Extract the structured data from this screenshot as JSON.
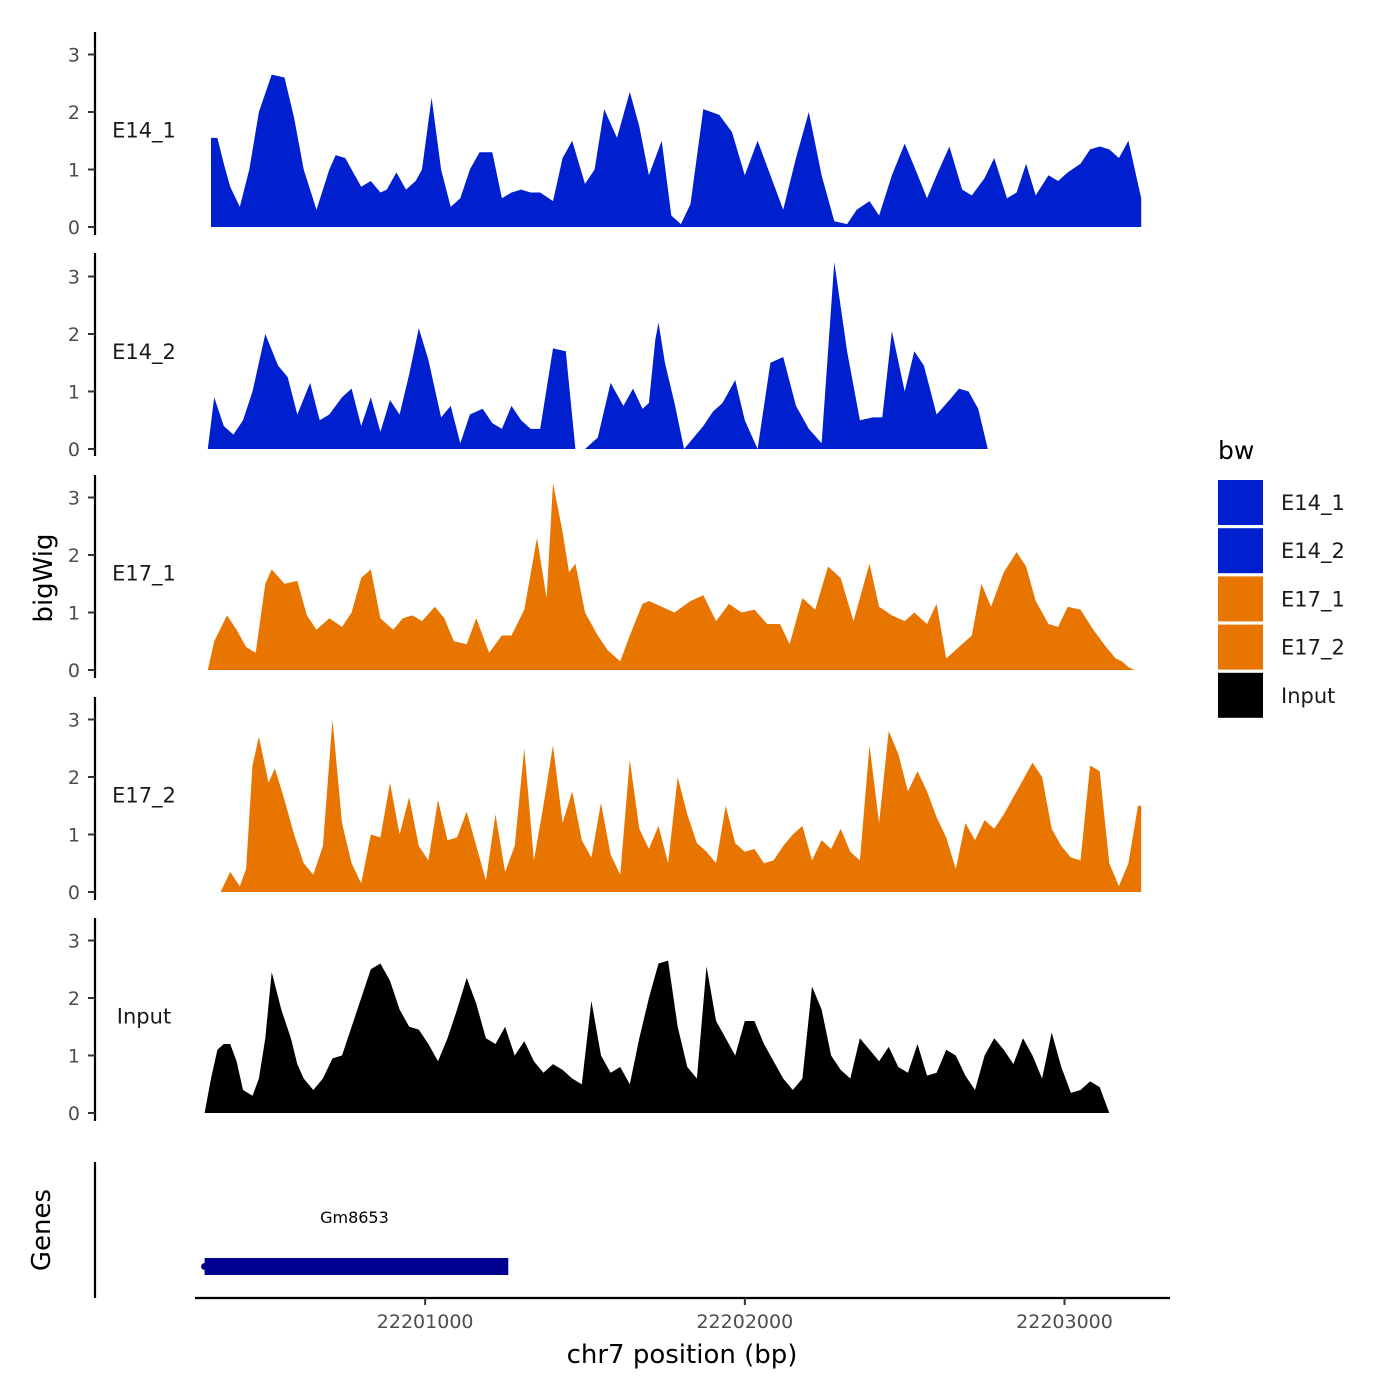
{
  "chart_data": {
    "type": "area",
    "ylabel": "bigWig",
    "xlabel": "chr7 position (bp)",
    "xlim": [
      22200280,
      22203330
    ],
    "ylim": [
      0,
      3.4
    ],
    "y_ticks": [
      0,
      1,
      2,
      3
    ],
    "y_tick_labels": [
      "0",
      "1",
      "2",
      "3"
    ],
    "x_ticks": [
      22201000,
      22202000,
      22203000
    ],
    "x_tick_labels": [
      "22201000",
      "22202000",
      "22203000"
    ],
    "colors": {
      "E14_1": "#0020d0",
      "E14_2": "#0020d0",
      "E17_1": "#e87500",
      "E17_2": "#e87500",
      "Input": "#000000",
      "gene": "#000090",
      "axis": "#000000"
    },
    "tracks": [
      {
        "name": "E14_1",
        "x": [
          22200330,
          22200350,
          22200370,
          22200390,
          22200420,
          22200450,
          22200480,
          22200520,
          22200560,
          22200590,
          22200620,
          22200660,
          22200700,
          22200720,
          22200750,
          22200780,
          22200800,
          22200830,
          22200860,
          22200880,
          22200910,
          22200940,
          22200970,
          22200990,
          22201020,
          22201050,
          22201080,
          22201110,
          22201140,
          22201170,
          22201210,
          22201240,
          22201270,
          22201300,
          22201330,
          22201360,
          22201400,
          22201430,
          22201460,
          22201500,
          22201530,
          22201560,
          22201600,
          22201640,
          22201670,
          22201700,
          22201740,
          22201770,
          22201800,
          22201830,
          22201870,
          22201920,
          22201960,
          22202000,
          22202040,
          22202080,
          22202120,
          22202160,
          22202200,
          22202240,
          22202280,
          22202320,
          22202350,
          22202390,
          22202420,
          22202460,
          22202500,
          22202530,
          22202570,
          22202600,
          22202640,
          22202680,
          22202710,
          22202750,
          22202780,
          22202820,
          22202850,
          22202880,
          22202910,
          22202950,
          22202980,
          22203010,
          22203050,
          22203080,
          22203110,
          22203140,
          22203170,
          22203200,
          22203220,
          22203240
        ],
        "values": [
          1.55,
          1.55,
          1.1,
          0.7,
          0.35,
          1.0,
          2.0,
          2.65,
          2.6,
          1.9,
          1.0,
          0.3,
          1.0,
          1.25,
          1.2,
          0.9,
          0.7,
          0.8,
          0.6,
          0.65,
          0.95,
          0.65,
          0.8,
          1.0,
          2.25,
          1.0,
          0.35,
          0.5,
          1.0,
          1.3,
          1.3,
          0.5,
          0.6,
          0.65,
          0.6,
          0.6,
          0.45,
          1.2,
          1.5,
          0.75,
          1.0,
          2.05,
          1.55,
          2.35,
          1.75,
          0.9,
          1.5,
          0.2,
          0.05,
          0.4,
          2.05,
          1.95,
          1.65,
          0.9,
          1.5,
          0.9,
          0.3,
          1.2,
          2.0,
          0.9,
          0.1,
          0.05,
          0.3,
          0.45,
          0.2,
          0.9,
          1.45,
          1.05,
          0.5,
          0.9,
          1.4,
          0.65,
          0.55,
          0.85,
          1.2,
          0.5,
          0.6,
          1.1,
          0.55,
          0.9,
          0.8,
          0.95,
          1.1,
          1.35,
          1.4,
          1.35,
          1.2,
          1.5,
          1.0,
          0.5
        ]
      },
      {
        "name": "E14_2",
        "x": [
          22200320,
          22200340,
          22200370,
          22200400,
          22200430,
          22200460,
          22200500,
          22200540,
          22200570,
          22200600,
          22200640,
          22200670,
          22200700,
          22200740,
          22200770,
          22200800,
          22200830,
          22200860,
          22200890,
          22200920,
          22200950,
          22200980,
          22201010,
          22201050,
          22201080,
          22201110,
          22201140,
          22201180,
          22201210,
          22201240,
          22201270,
          22201300,
          22201330,
          22201360,
          22201400,
          22201440,
          22201470,
          22201500,
          22201540,
          22201580,
          22201620,
          22201650,
          22201680,
          22201700,
          22201720,
          22201730,
          22201750,
          22201780,
          22201810,
          22201840,
          22201870,
          22201900,
          22201930,
          22201970,
          22202000,
          22202040,
          22202080,
          22202120,
          22202160,
          22202200,
          22202240,
          22202280,
          22202320,
          22202360,
          22202400,
          22202430,
          22202460,
          22202500,
          22202530,
          22202560,
          22202600,
          22202640,
          22202670,
          22202700,
          22202730,
          22202760,
          22202800,
          22202830,
          22202860,
          22202900,
          22202930,
          22202960,
          22202990,
          22203030,
          22203060,
          22203100,
          22203140,
          22203170,
          22203200,
          22203230,
          22203250
        ],
        "values": [
          0.0,
          0.9,
          0.4,
          0.25,
          0.5,
          1.0,
          2.0,
          1.45,
          1.25,
          0.6,
          1.15,
          0.5,
          0.6,
          0.9,
          1.05,
          0.4,
          0.9,
          0.3,
          0.85,
          0.6,
          1.3,
          2.1,
          1.55,
          0.55,
          0.75,
          0.1,
          0.6,
          0.7,
          0.45,
          0.35,
          0.75,
          0.5,
          0.35,
          0.35,
          1.75,
          1.7,
          0.0,
          0.0,
          0.2,
          1.15,
          0.75,
          1.05,
          0.7,
          0.8,
          1.9,
          2.2,
          1.5,
          0.8,
          0.0,
          0.2,
          0.4,
          0.65,
          0.8,
          1.2,
          0.5,
          0.0,
          1.5,
          1.6,
          0.75,
          0.35,
          0.1,
          3.25,
          1.7,
          0.5,
          0.55,
          0.55,
          2.05,
          1.0,
          1.7,
          1.45,
          0.6,
          0.85,
          1.05,
          1.0,
          0.7,
          0.0,
          0.0,
          0.0,
          0.0,
          0.0,
          0.0,
          0.0,
          0.0,
          0.0,
          0.0,
          0.0,
          0.0,
          0.0,
          0.0,
          0.0,
          0.0
        ],
        "note_values_order": "values follow x order"
      },
      {
        "name": "E17_1",
        "x": [
          22200320,
          22200340,
          22200380,
          22200410,
          22200440,
          22200470,
          22200500,
          22200520,
          22200560,
          22200600,
          22200630,
          22200660,
          22200700,
          22200740,
          22200770,
          22200800,
          22200830,
          22200860,
          22200900,
          22200930,
          22200960,
          22200990,
          22201030,
          22201060,
          22201090,
          22201130,
          22201160,
          22201200,
          22201240,
          22201270,
          22201310,
          22201350,
          22201380,
          22201400,
          22201430,
          22201450,
          22201470,
          22201500,
          22201540,
          22201570,
          22201610,
          22201640,
          22201680,
          22201700,
          22201740,
          22201780,
          22201830,
          22201870,
          22201910,
          22201950,
          22201990,
          22202030,
          22202070,
          22202110,
          22202140,
          22202180,
          22202220,
          22202260,
          22202300,
          22202340,
          22202390,
          22202420,
          22202460,
          22202500,
          22202530,
          22202570,
          22202600,
          22202630,
          22202670,
          22202710,
          22202740,
          22202770,
          22202810,
          22202850,
          22202880,
          22202910,
          22202950,
          22202980,
          22203010,
          22203050,
          22203090,
          22203130,
          22203160,
          22203180,
          22203200,
          22203220,
          22203240,
          22203260
        ],
        "values": [
          0.0,
          0.5,
          0.95,
          0.7,
          0.4,
          0.3,
          1.5,
          1.75,
          1.5,
          1.55,
          0.95,
          0.7,
          0.9,
          0.75,
          1.0,
          1.6,
          1.75,
          0.9,
          0.7,
          0.9,
          0.95,
          0.85,
          1.1,
          0.9,
          0.5,
          0.45,
          0.9,
          0.3,
          0.6,
          0.6,
          1.05,
          2.3,
          1.25,
          3.25,
          2.4,
          1.7,
          1.85,
          1.0,
          0.6,
          0.35,
          0.15,
          0.6,
          1.15,
          1.2,
          1.1,
          1.0,
          1.2,
          1.3,
          0.85,
          1.15,
          1.0,
          1.05,
          0.8,
          0.8,
          0.45,
          1.25,
          1.05,
          1.8,
          1.6,
          0.85,
          1.85,
          1.1,
          0.95,
          0.85,
          1.0,
          0.8,
          1.15,
          0.2,
          0.4,
          0.6,
          1.5,
          1.1,
          1.7,
          2.05,
          1.8,
          1.2,
          0.8,
          0.75,
          1.1,
          1.05,
          0.7,
          0.4,
          0.2,
          0.15,
          0.05,
          0.0,
          0.0,
          0.0
        ]
      },
      {
        "name": "E17_2",
        "x": [
          22200360,
          22200390,
          22200420,
          22200440,
          22200460,
          22200480,
          22200510,
          22200530,
          22200560,
          22200590,
          22200620,
          22200650,
          22200680,
          22200710,
          22200740,
          22200770,
          22200800,
          22200830,
          22200860,
          22200890,
          22200920,
          22200950,
          22200980,
          22201010,
          22201040,
          22201070,
          22201100,
          22201130,
          22201160,
          22201190,
          22201220,
          22201250,
          22201280,
          22201310,
          22201340,
          22201370,
          22201400,
          22201430,
          22201460,
          22201490,
          22201520,
          22201550,
          22201580,
          22201610,
          22201640,
          22201670,
          22201700,
          22201730,
          22201760,
          22201790,
          22201820,
          22201850,
          22201880,
          22201910,
          22201940,
          22201970,
          22202000,
          22202030,
          22202060,
          22202090,
          22202120,
          22202150,
          22202180,
          22202210,
          22202240,
          22202270,
          22202300,
          22202330,
          22202360,
          22202390,
          22202420,
          22202450,
          22202480,
          22202510,
          22202540,
          22202570,
          22202600,
          22202630,
          22202660,
          22202690,
          22202720,
          22202750,
          22202780,
          22202810,
          22202840,
          22202870,
          22202900,
          22202930,
          22202960,
          22202990,
          22203020,
          22203050,
          22203080,
          22203110,
          22203140,
          22203170,
          22203200,
          22203230,
          22203240
        ],
        "values": [
          0.0,
          0.35,
          0.1,
          0.4,
          2.2,
          2.7,
          1.9,
          2.15,
          1.6,
          1.0,
          0.5,
          0.3,
          0.8,
          3.0,
          1.2,
          0.5,
          0.15,
          1.0,
          0.95,
          1.9,
          1.0,
          1.65,
          0.8,
          0.55,
          1.6,
          0.9,
          0.95,
          1.4,
          0.8,
          0.2,
          1.35,
          0.35,
          0.8,
          2.5,
          0.55,
          1.5,
          2.55,
          1.2,
          1.75,
          0.9,
          0.6,
          1.55,
          0.65,
          0.3,
          2.3,
          1.1,
          0.75,
          1.15,
          0.5,
          2.0,
          1.35,
          0.85,
          0.7,
          0.5,
          1.5,
          0.85,
          0.7,
          0.75,
          0.5,
          0.55,
          0.8,
          1.0,
          1.15,
          0.55,
          0.9,
          0.75,
          1.1,
          0.7,
          0.55,
          2.55,
          1.2,
          2.8,
          2.4,
          1.75,
          2.1,
          1.75,
          1.3,
          0.95,
          0.4,
          1.2,
          0.9,
          1.25,
          1.1,
          1.35,
          1.65,
          1.95,
          2.25,
          2.0,
          1.1,
          0.8,
          0.6,
          0.55,
          2.2,
          2.1,
          0.5,
          0.1,
          0.5,
          1.5,
          1.5
        ]
      },
      {
        "name": "Input",
        "x": [
          22200310,
          22200330,
          22200350,
          22200370,
          22200390,
          22200410,
          22200430,
          22200460,
          22200480,
          22200500,
          22200520,
          22200550,
          22200580,
          22200600,
          22200620,
          22200650,
          22200680,
          22200710,
          22200740,
          22200770,
          22200800,
          22200830,
          22200860,
          22200890,
          22200920,
          22200950,
          22200980,
          22201010,
          22201040,
          22201070,
          22201100,
          22201130,
          22201160,
          22201190,
          22201220,
          22201250,
          22201280,
          22201310,
          22201340,
          22201370,
          22201400,
          22201430,
          22201460,
          22201490,
          22201520,
          22201550,
          22201580,
          22201610,
          22201640,
          22201670,
          22201700,
          22201730,
          22201760,
          22201790,
          22201820,
          22201850,
          22201880,
          22201910,
          22201940,
          22201970,
          22202000,
          22202030,
          22202060,
          22202090,
          22202120,
          22202150,
          22202180,
          22202210,
          22202240,
          22202270,
          22202300,
          22202330,
          22202360,
          22202390,
          22202420,
          22202450,
          22202480,
          22202510,
          22202540,
          22202570,
          22202600,
          22202630,
          22202660,
          22202690,
          22202720,
          22202750,
          22202780,
          22202810,
          22202840,
          22202870,
          22202900,
          22202930,
          22202960,
          22202990,
          22203020,
          22203050,
          22203080,
          22203110,
          22203140,
          22203170,
          22203200,
          22203230,
          22203250
        ],
        "values": [
          0.0,
          0.6,
          1.1,
          1.2,
          1.2,
          0.9,
          0.4,
          0.3,
          0.6,
          1.3,
          2.45,
          1.8,
          1.3,
          0.85,
          0.6,
          0.4,
          0.6,
          0.95,
          1.0,
          1.5,
          2.0,
          2.5,
          2.6,
          2.3,
          1.8,
          1.5,
          1.45,
          1.2,
          0.9,
          1.3,
          1.8,
          2.35,
          1.9,
          1.3,
          1.2,
          1.5,
          1.0,
          1.25,
          0.9,
          0.7,
          0.85,
          0.75,
          0.6,
          0.5,
          1.95,
          1.0,
          0.7,
          0.8,
          0.5,
          1.3,
          2.0,
          2.6,
          2.65,
          1.5,
          0.8,
          0.6,
          2.55,
          1.6,
          1.3,
          1.0,
          1.6,
          1.6,
          1.2,
          0.9,
          0.6,
          0.4,
          0.6,
          2.2,
          1.8,
          1.0,
          0.75,
          0.6,
          1.3,
          1.1,
          0.9,
          1.15,
          0.8,
          0.7,
          1.2,
          0.65,
          0.7,
          1.1,
          1.0,
          0.65,
          0.4,
          1.0,
          1.3,
          1.1,
          0.85,
          1.3,
          1.0,
          0.6,
          1.4,
          0.8,
          0.35,
          0.4,
          0.55,
          0.45,
          0.0,
          0.0,
          0.0,
          0.0,
          0.0
        ],
        "trim_to": 102
      }
    ],
    "genes": [
      {
        "name": "Gm8653",
        "start": 22200310,
        "end": 22201260
      }
    ],
    "genes_panel_label": "Genes",
    "legend": {
      "title": "bw",
      "position": "right",
      "entries": [
        "E14_1",
        "E14_2",
        "E17_1",
        "E17_2",
        "Input"
      ]
    }
  }
}
